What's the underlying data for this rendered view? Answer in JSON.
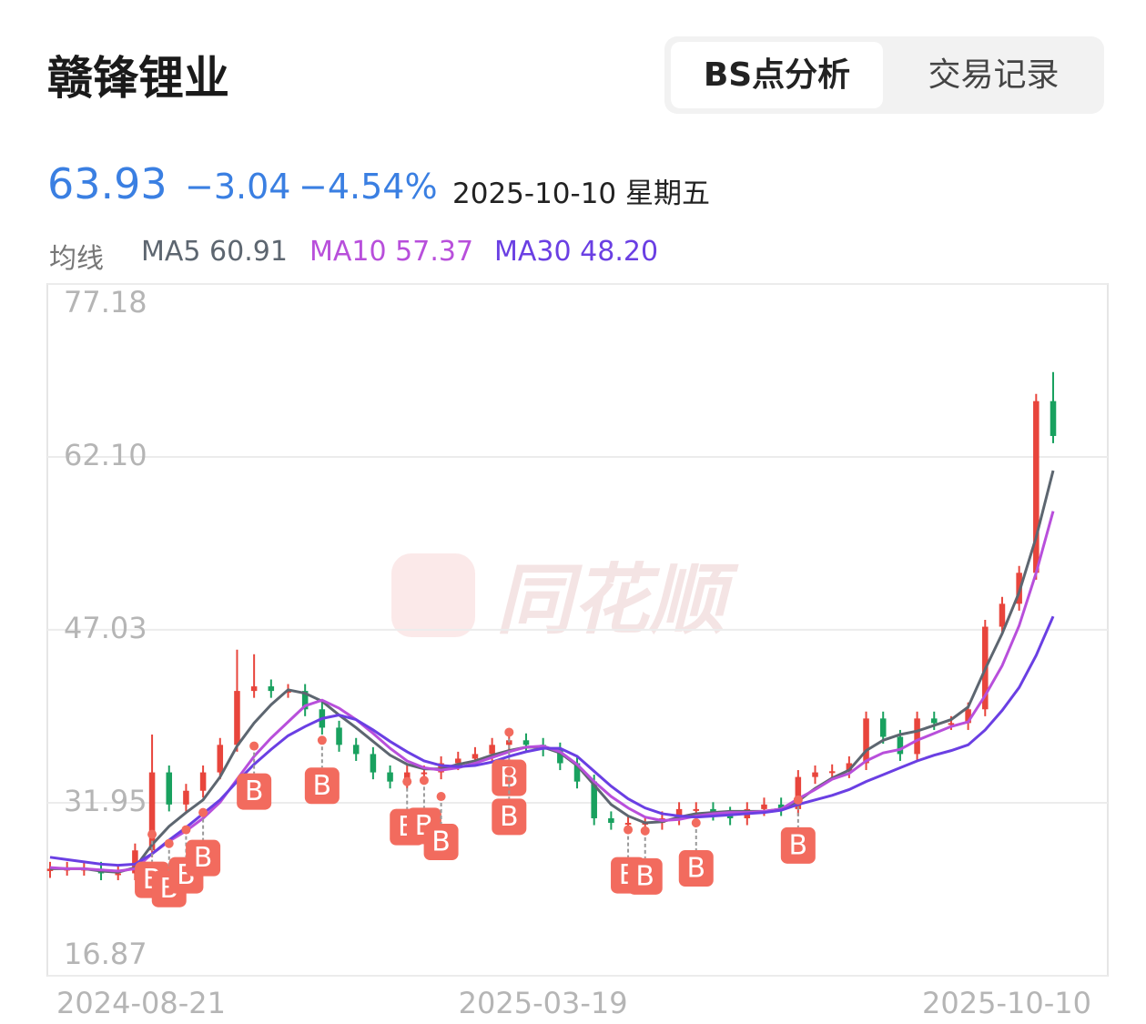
{
  "header": {
    "title": "赣锋锂业",
    "tabs": [
      "BS点分析",
      "交易记录"
    ]
  },
  "quote": {
    "price": "63.93",
    "change": "−3.04",
    "change_pct": "−4.54%",
    "date": "2025-10-10 星期五"
  },
  "ma_legend": {
    "label": "均线",
    "items": [
      {
        "name": "MA5",
        "value": "60.91"
      },
      {
        "name": "MA10",
        "value": "57.37"
      },
      {
        "name": "MA30",
        "value": "48.20"
      }
    ]
  },
  "chart_data": {
    "type": "candlestick",
    "watermark": "同花顺",
    "categories": [
      null,
      null,
      null,
      null,
      null,
      "2024-08-21",
      null,
      null,
      null,
      null,
      null,
      null,
      null,
      null,
      null,
      null,
      null,
      null,
      null,
      null,
      null,
      null,
      null,
      null,
      null,
      null,
      null,
      null,
      null,
      "2025-03-19",
      null,
      null,
      null,
      null,
      null,
      null,
      null,
      null,
      null,
      null,
      null,
      null,
      null,
      null,
      null,
      null,
      null,
      null,
      null,
      null,
      null,
      null,
      null,
      null,
      null,
      null,
      null,
      null,
      null,
      "2025-10-10"
    ],
    "open": [
      26.0,
      26.2,
      26.2,
      26.2,
      25.8,
      25.8,
      27.8,
      34.6,
      31.8,
      33.0,
      34.6,
      37.0,
      41.7,
      42.1,
      41.7,
      41.7,
      40.1,
      38.5,
      37.0,
      36.2,
      34.6,
      33.8,
      34.6,
      34.6,
      35.4,
      35.8,
      36.2,
      37.0,
      37.4,
      37.0,
      36.6,
      35.4,
      33.8,
      30.6,
      30.2,
      30.2,
      30.2,
      30.6,
      31.4,
      31.4,
      31.0,
      30.6,
      31.4,
      31.8,
      31.4,
      34.2,
      34.6,
      34.7,
      35.4,
      39.3,
      37.7,
      36.2,
      39.3,
      38.9,
      38.9,
      40.1,
      47.3,
      49.3,
      52.0,
      66.97
    ],
    "close": [
      26.2,
      26.2,
      26.2,
      25.8,
      25.8,
      27.8,
      34.6,
      31.8,
      33.0,
      34.6,
      37.0,
      41.7,
      42.1,
      41.7,
      41.7,
      40.1,
      38.5,
      37.0,
      36.2,
      34.6,
      33.8,
      34.6,
      34.6,
      35.4,
      35.8,
      36.2,
      37.0,
      37.4,
      37.0,
      36.6,
      35.4,
      33.8,
      30.6,
      30.2,
      30.2,
      30.2,
      30.6,
      31.4,
      31.4,
      31.0,
      30.6,
      31.4,
      31.8,
      31.4,
      34.2,
      34.6,
      34.7,
      35.4,
      39.3,
      37.7,
      36.2,
      39.3,
      38.9,
      38.9,
      40.1,
      47.3,
      49.3,
      52.0,
      66.97,
      63.93
    ],
    "high": [
      26.8,
      26.8,
      26.8,
      26.8,
      26.4,
      28.4,
      37.9,
      35.2,
      33.6,
      35.2,
      37.6,
      45.3,
      44.9,
      42.7,
      42.3,
      42.3,
      40.7,
      39.1,
      37.6,
      36.8,
      35.2,
      35.2,
      35.2,
      36.0,
      36.4,
      36.8,
      37.6,
      38.0,
      38.0,
      37.6,
      37.2,
      36.0,
      34.4,
      31.2,
      30.8,
      30.8,
      31.2,
      32.0,
      32.0,
      32.0,
      31.6,
      32.0,
      32.4,
      32.4,
      34.8,
      35.2,
      35.3,
      36.0,
      39.9,
      39.9,
      38.3,
      39.9,
      39.9,
      39.5,
      40.7,
      47.9,
      49.9,
      52.6,
      67.6,
      69.5
    ],
    "low": [
      25.4,
      25.6,
      25.6,
      25.2,
      25.2,
      25.2,
      27.2,
      31.2,
      31.2,
      32.4,
      34.0,
      36.4,
      41.1,
      41.1,
      41.1,
      39.5,
      37.9,
      36.4,
      35.6,
      34.0,
      33.2,
      33.2,
      34.0,
      34.0,
      34.8,
      35.2,
      35.6,
      36.4,
      36.4,
      36.0,
      34.8,
      33.2,
      30.0,
      29.6,
      29.6,
      29.6,
      29.6,
      30.0,
      30.8,
      30.4,
      30.0,
      30.0,
      30.8,
      30.8,
      30.8,
      33.6,
      34.0,
      34.1,
      34.8,
      37.1,
      35.6,
      35.6,
      38.3,
      38.3,
      38.3,
      39.5,
      46.7,
      48.7,
      51.4,
      63.3
    ],
    "up_color": "#e8453c",
    "down_color": "#19a15f",
    "series": [
      {
        "name": "MA5",
        "color": "#5d6670",
        "values": [
          26.2,
          26.2,
          26.2,
          26.0,
          25.9,
          26.3,
          28.3,
          29.9,
          31.1,
          32.2,
          34.2,
          36.9,
          38.9,
          40.5,
          41.8,
          41.5,
          40.8,
          39.6,
          38.5,
          37.3,
          36.1,
          35.3,
          34.9,
          34.9,
          35.3,
          35.6,
          36.1,
          36.5,
          36.8,
          36.8,
          36.3,
          35.2,
          33.5,
          31.8,
          30.8,
          30.2,
          30.3,
          30.7,
          31.0,
          31.1,
          31.2,
          31.2,
          31.2,
          31.4,
          32.1,
          33.2,
          34.1,
          34.8,
          36.5,
          37.4,
          37.9,
          38.2,
          38.7,
          39.2,
          40.3,
          43.6,
          46.7,
          50.3,
          55.1,
          60.91
        ]
      },
      {
        "name": "MA10",
        "color": "#b84fdb",
        "values": [
          26.3,
          26.2,
          26.2,
          26.1,
          26.0,
          26.2,
          27.5,
          28.6,
          29.5,
          30.6,
          32.0,
          34.0,
          36.0,
          37.6,
          39.0,
          40.4,
          40.9,
          40.2,
          39.2,
          38.0,
          36.7,
          35.6,
          35.0,
          34.8,
          35.0,
          35.4,
          35.9,
          36.4,
          36.8,
          36.9,
          36.4,
          35.3,
          33.8,
          32.5,
          31.5,
          30.7,
          30.4,
          30.5,
          30.8,
          31.0,
          31.1,
          31.1,
          31.2,
          31.4,
          32.3,
          33.1,
          34.0,
          34.5,
          35.6,
          36.3,
          36.6,
          37.4,
          38.0,
          38.6,
          39.0,
          41.3,
          43.9,
          47.4,
          52.0,
          57.37
        ]
      },
      {
        "name": "MA30",
        "color": "#6a3fe3",
        "values": [
          27.2,
          27.0,
          26.8,
          26.6,
          26.5,
          26.6,
          27.5,
          28.7,
          29.8,
          31.0,
          32.2,
          33.8,
          35.3,
          36.6,
          37.8,
          38.6,
          39.3,
          39.6,
          39.2,
          38.3,
          37.3,
          36.4,
          35.6,
          35.2,
          35.1,
          35.2,
          35.5,
          36.0,
          36.4,
          36.7,
          36.7,
          36.0,
          34.7,
          33.4,
          32.3,
          31.5,
          31.0,
          30.8,
          30.7,
          30.8,
          30.9,
          31.0,
          31.1,
          31.3,
          31.8,
          32.2,
          32.6,
          33.1,
          33.8,
          34.4,
          35.0,
          35.6,
          36.1,
          36.5,
          37.0,
          38.3,
          40.0,
          42.0,
          44.8,
          48.2
        ]
      }
    ],
    "bs_points": [
      {
        "label": "B",
        "index": 6,
        "value": 29.2
      },
      {
        "label": "B",
        "index": 7,
        "value": 28.4
      },
      {
        "label": "B",
        "index": 8,
        "value": 29.6
      },
      {
        "label": "B",
        "index": 9,
        "value": 31.1
      },
      {
        "label": "B",
        "index": 12,
        "value": 36.9
      },
      {
        "label": "B",
        "index": 16,
        "value": 37.4
      },
      {
        "label": "B",
        "index": 21,
        "value": 33.8
      },
      {
        "label": "B",
        "index": 22,
        "value": 33.9
      },
      {
        "label": "B",
        "index": 23,
        "value": 32.5
      },
      {
        "label": "B",
        "index": 27,
        "value": 38.1
      },
      {
        "label": "B",
        "index": 27,
        "value": 34.7
      },
      {
        "label": "B",
        "index": 34,
        "value": 29.6
      },
      {
        "label": "B",
        "index": 35,
        "value": 29.5
      },
      {
        "label": "B",
        "index": 38,
        "value": 30.2
      },
      {
        "label": "B",
        "index": 44,
        "value": 32.2
      }
    ],
    "marker_color": "#f26b5e",
    "ylim": [
      16.87,
      77.18
    ],
    "yticks": [
      16.87,
      31.95,
      47.03,
      {
        "value": 62.1,
        "label": "62.10"
      },
      77.18
    ],
    "grid": true
  }
}
